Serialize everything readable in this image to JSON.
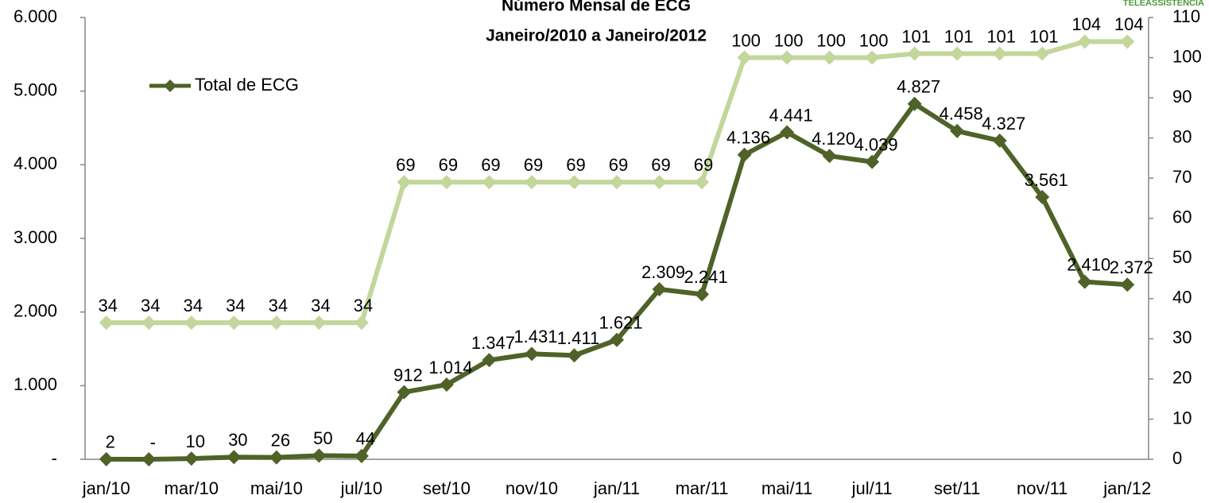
{
  "chart_data": {
    "type": "line",
    "title": [
      "Número Mensal de ECG",
      "Janeiro/2010 a Janeiro/2012"
    ],
    "logo_text": "TELEASSISTÊNCIA",
    "categories": [
      "jan/10",
      null,
      "mar/10",
      null,
      "mai/10",
      null,
      "jul/10",
      null,
      "set/10",
      null,
      "nov/10",
      null,
      "jan/11",
      null,
      "mar/11",
      null,
      "mai/11",
      null,
      "jul/11",
      null,
      "set/11",
      null,
      "nov/11",
      null,
      "jan/12"
    ],
    "series": [
      {
        "name": "Total de ECG",
        "color": "#4f6228",
        "axis": "y",
        "values": [
          2,
          0,
          10,
          30,
          26,
          50,
          44,
          912,
          1014,
          1347,
          1431,
          1411,
          1621,
          2309,
          2241,
          4136,
          4441,
          4120,
          4039,
          4827,
          4458,
          4327,
          3561,
          2410,
          2372
        ],
        "value_labels": [
          "2",
          "-",
          "10",
          "30",
          "26",
          "50",
          "44",
          "912",
          "1.014",
          "1.347",
          "1.431",
          "1.411",
          "1.621",
          "2.309",
          "2.241",
          "4.136",
          "4.441",
          "4.120",
          "4.039",
          "4.827",
          "4.458",
          "4.327",
          "3.561",
          "2.410",
          "2.372"
        ]
      },
      {
        "color": "#c3d69b",
        "axis": "y2",
        "values": [
          34,
          34,
          34,
          34,
          34,
          34,
          34,
          69,
          69,
          69,
          69,
          69,
          69,
          69,
          69,
          100,
          100,
          100,
          100,
          101,
          101,
          101,
          101,
          104,
          104
        ]
      }
    ],
    "ylim": [
      0,
      6000
    ],
    "yticks": [
      {
        "value": 0,
        "label": "-"
      },
      {
        "value": 1000,
        "label": "1.000"
      },
      {
        "value": 2000,
        "label": "2.000"
      },
      {
        "value": 3000,
        "label": "3.000"
      },
      {
        "value": 4000,
        "label": "4.000"
      },
      {
        "value": 5000,
        "label": "5.000"
      },
      {
        "value": 6000,
        "label": "6.000"
      }
    ],
    "y2lim": [
      0,
      110
    ],
    "y2ticks": [
      0,
      10,
      20,
      30,
      40,
      50,
      60,
      70,
      80,
      90,
      100,
      110
    ],
    "legend": "upper left"
  }
}
